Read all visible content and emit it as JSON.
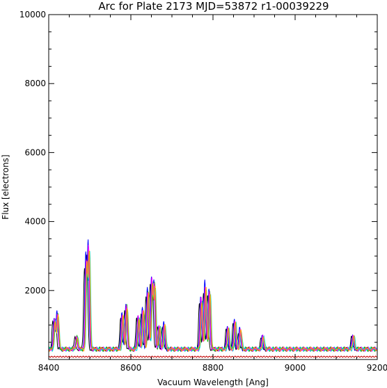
{
  "chart_data": {
    "type": "line",
    "title": "Arc for Plate 2173  MJD=53872  r1-00039229",
    "xlabel": "Vacuum Wavelength [Ang]",
    "ylabel": "Flux [electrons]",
    "xlim": [
      8400,
      9200
    ],
    "ylim": [
      0,
      10000
    ],
    "xticks": [
      8400,
      8600,
      8800,
      9000,
      9200
    ],
    "yticks": [
      2000,
      4000,
      6000,
      8000,
      10000
    ],
    "grid": false,
    "legend": "none",
    "baseline": 300,
    "series": [
      {
        "color": "#000000",
        "offset": -3,
        "scale": 0.85
      },
      {
        "color": "#0000ff",
        "offset": 0,
        "scale": 1.0
      },
      {
        "color": "#00c000",
        "offset": 2,
        "scale": 0.92
      },
      {
        "color": "#00e0e0",
        "offset": 4,
        "scale": 0.88
      },
      {
        "color": "#ff00ff",
        "offset": 1,
        "scale": 0.95
      },
      {
        "color": "#ffa500",
        "offset": 3,
        "scale": 0.9
      }
    ],
    "lines": [
      {
        "x": 8413,
        "y": 900
      },
      {
        "x": 8420,
        "y": 1100
      },
      {
        "x": 8467,
        "y": 380
      },
      {
        "x": 8490,
        "y": 2700
      },
      {
        "x": 8496,
        "y": 3100
      },
      {
        "x": 8578,
        "y": 1050
      },
      {
        "x": 8588,
        "y": 1350
      },
      {
        "x": 8617,
        "y": 1000
      },
      {
        "x": 8628,
        "y": 1200
      },
      {
        "x": 8640,
        "y": 1800
      },
      {
        "x": 8650,
        "y": 2100
      },
      {
        "x": 8656,
        "y": 2000
      },
      {
        "x": 8668,
        "y": 700
      },
      {
        "x": 8680,
        "y": 750
      },
      {
        "x": 8770,
        "y": 1550
      },
      {
        "x": 8780,
        "y": 1950
      },
      {
        "x": 8790,
        "y": 1800
      },
      {
        "x": 8835,
        "y": 650
      },
      {
        "x": 8852,
        "y": 850
      },
      {
        "x": 8865,
        "y": 600
      },
      {
        "x": 8920,
        "y": 380
      },
      {
        "x": 9140,
        "y": 400
      }
    ]
  }
}
